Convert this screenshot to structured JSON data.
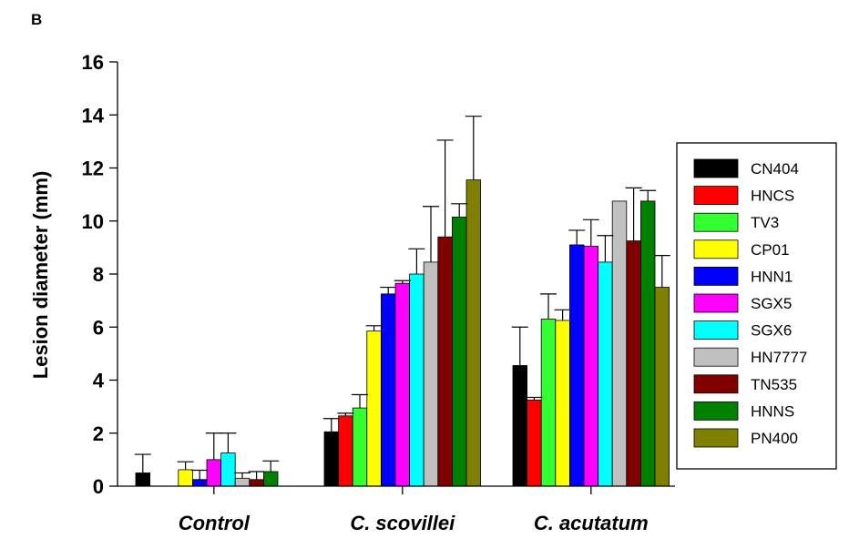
{
  "panel_label": "B",
  "chart_data": {
    "type": "bar",
    "ylabel": "Lesion diameter (mm)",
    "xlabel": "",
    "ylim": [
      0,
      16
    ],
    "yticks": [
      0,
      2,
      4,
      6,
      8,
      10,
      12,
      14,
      16
    ],
    "categories": [
      "Control",
      "C. scovillei",
      "C. acutatum"
    ],
    "legend_position": "right",
    "series": [
      {
        "name": "CN404",
        "color": "#000000",
        "values": [
          0.5,
          2.05,
          4.55
        ],
        "errors": [
          0.7,
          0.5,
          1.45
        ]
      },
      {
        "name": "HNCS",
        "color": "#ff0000",
        "values": [
          0.0,
          2.65,
          3.25
        ],
        "errors": [
          0.0,
          0.1,
          0.1
        ]
      },
      {
        "name": "TV3",
        "color": "#33ff33",
        "values": [
          0.0,
          2.95,
          6.3
        ],
        "errors": [
          0.0,
          0.5,
          0.95
        ]
      },
      {
        "name": "CP01",
        "color": "#ffff00",
        "values": [
          0.62,
          5.85,
          6.25
        ],
        "errors": [
          0.3,
          0.2,
          0.4
        ]
      },
      {
        "name": "HNN1",
        "color": "#0000ff",
        "values": [
          0.25,
          7.25,
          9.1
        ],
        "errors": [
          0.35,
          0.25,
          0.55
        ]
      },
      {
        "name": "SGX5",
        "color": "#ff00ff",
        "values": [
          1.0,
          7.65,
          9.05
        ],
        "errors": [
          1.0,
          0.1,
          1.0
        ]
      },
      {
        "name": "SGX6",
        "color": "#00ffff",
        "values": [
          1.25,
          8.0,
          8.45
        ],
        "errors": [
          0.75,
          0.95,
          1.0
        ]
      },
      {
        "name": "HN7777",
        "color": "#c0c0c0",
        "values": [
          0.3,
          8.45,
          10.75
        ],
        "errors": [
          0.2,
          2.1,
          0.0
        ]
      },
      {
        "name": "TN535",
        "color": "#800000",
        "values": [
          0.25,
          9.4,
          9.25
        ],
        "errors": [
          0.3,
          3.65,
          2.0
        ]
      },
      {
        "name": "HNNS",
        "color": "#008000",
        "values": [
          0.55,
          10.15,
          10.75
        ],
        "errors": [
          0.4,
          0.5,
          0.4
        ]
      },
      {
        "name": "PN400",
        "color": "#808000",
        "values": [
          0.0,
          11.55,
          7.5
        ],
        "errors": [
          0.0,
          2.4,
          1.2
        ]
      }
    ]
  }
}
